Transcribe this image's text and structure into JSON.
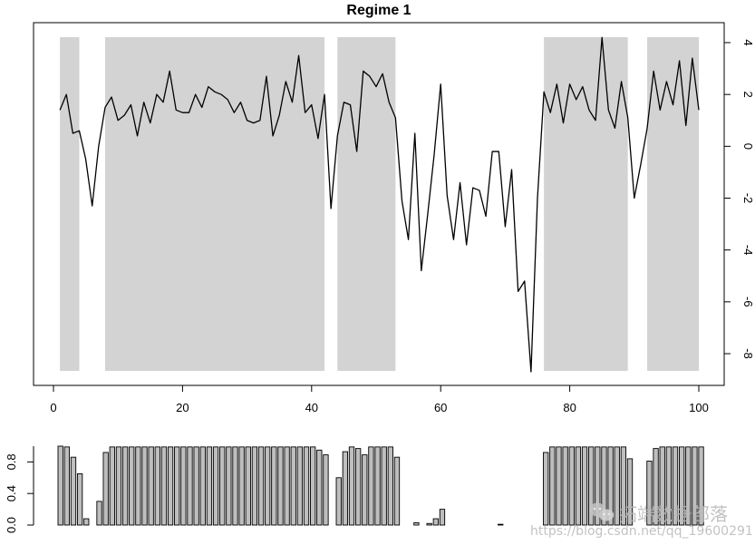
{
  "chart_data": [
    {
      "type": "line",
      "title": "Regime 1",
      "xlabel": "",
      "ylabel": "",
      "xlim": [
        0,
        100
      ],
      "ylim": [
        -9,
        5.5
      ],
      "x_ticks": [
        0,
        20,
        40,
        60,
        80,
        100
      ],
      "y_ticks": [
        4,
        2,
        0,
        -2,
        -4,
        -6,
        -8
      ],
      "y_axis_side": "right",
      "shaded_regime_x_ranges": [
        [
          1,
          4
        ],
        [
          8,
          42
        ],
        [
          44,
          53
        ],
        [
          76,
          89
        ],
        [
          92,
          100
        ]
      ],
      "shade_color": "#d3d3d3",
      "series": [
        {
          "x": [
            1,
            2,
            3,
            4,
            5,
            6,
            7,
            8,
            9,
            10,
            11,
            12,
            13,
            14,
            15,
            16,
            17,
            18,
            19,
            20,
            21,
            22,
            23,
            24,
            25,
            26,
            27,
            28,
            29,
            30,
            31,
            32,
            33,
            34,
            35,
            36,
            37,
            38,
            39,
            40,
            41,
            42,
            43,
            44,
            45,
            46,
            47,
            48,
            49,
            50,
            51,
            52,
            53,
            54,
            55,
            56,
            57,
            58,
            59,
            60,
            61,
            62,
            63,
            64,
            65,
            66,
            67,
            68,
            69,
            70,
            71,
            72,
            73,
            74,
            75,
            76,
            77,
            78,
            79,
            80,
            81,
            82,
            83,
            84,
            85,
            86,
            87,
            88,
            89,
            90,
            91,
            92,
            93,
            94,
            95,
            96,
            97,
            98,
            99,
            100
          ],
          "values": [
            1.4,
            2.0,
            0.5,
            0.6,
            -0.5,
            -2.3,
            0.0,
            1.5,
            1.9,
            1.0,
            1.2,
            1.6,
            0.4,
            1.7,
            0.9,
            2.0,
            1.7,
            2.9,
            1.4,
            1.3,
            1.3,
            2.0,
            1.5,
            2.3,
            2.1,
            2.0,
            1.8,
            1.3,
            1.7,
            1.0,
            0.9,
            1.0,
            2.7,
            0.4,
            1.2,
            2.5,
            1.7,
            3.5,
            1.3,
            1.6,
            0.3,
            2.0,
            -2.4,
            0.4,
            1.7,
            1.6,
            -0.2,
            2.9,
            2.7,
            2.3,
            2.8,
            1.7,
            1.1,
            -2.1,
            -3.6,
            0.5,
            -4.8,
            -2.6,
            -0.3,
            2.4,
            -1.9,
            -3.6,
            -1.4,
            -3.8,
            -1.6,
            -1.7,
            -2.7,
            -0.2,
            -0.2,
            -3.1,
            -0.9,
            -5.6,
            -5.2,
            -8.7,
            -2.0,
            2.1,
            1.3,
            2.4,
            0.9,
            2.4,
            1.8,
            2.3,
            1.4,
            1.0,
            4.2,
            1.4,
            0.7,
            2.5,
            1.1,
            -2.0,
            -0.7,
            0.7,
            2.9,
            1.4,
            2.5,
            1.6,
            3.3,
            0.8,
            3.4,
            1.4
          ]
        }
      ],
      "grid": false,
      "line_color": "#000000"
    },
    {
      "type": "bar",
      "title": "",
      "xlabel": "",
      "ylabel": "",
      "ylim": [
        0,
        1
      ],
      "y_ticks": [
        "0.0",
        "0.4",
        "0.8"
      ],
      "y_axis_side": "left",
      "bar_color": "#bebebe",
      "values": [
        1.0,
        0.99,
        0.86,
        0.65,
        0.08,
        0.0,
        0.3,
        0.92,
        0.99,
        0.99,
        0.99,
        0.99,
        0.99,
        0.99,
        0.99,
        0.99,
        0.99,
        0.99,
        0.99,
        0.99,
        0.99,
        0.99,
        0.99,
        0.99,
        0.99,
        0.99,
        0.99,
        0.99,
        0.99,
        0.99,
        0.99,
        0.99,
        0.99,
        0.99,
        0.99,
        0.99,
        0.99,
        0.99,
        0.99,
        0.99,
        0.95,
        0.89,
        0.0,
        0.6,
        0.93,
        0.99,
        0.97,
        0.89,
        0.99,
        0.99,
        0.99,
        0.99,
        0.86,
        0.0,
        0.0,
        0.03,
        0.0,
        0.02,
        0.08,
        0.2,
        0.0,
        0.0,
        0.0,
        0.0,
        0.0,
        0.0,
        0.0,
        0.0,
        0.01,
        0.0,
        0.0,
        0.0,
        0.0,
        0.0,
        0.0,
        0.92,
        0.99,
        0.99,
        0.99,
        0.99,
        0.99,
        0.99,
        0.99,
        0.99,
        0.99,
        0.99,
        0.99,
        0.99,
        0.84,
        0.0,
        0.0,
        0.81,
        0.97,
        0.99,
        0.99,
        0.99,
        0.99,
        0.99,
        0.99,
        0.99
      ]
    }
  ],
  "watermark": {
    "brand_text": "拓端数据部落",
    "url_text": "https://blog.csdn.net/qq_19600291",
    "icon": "wechat-icon"
  }
}
